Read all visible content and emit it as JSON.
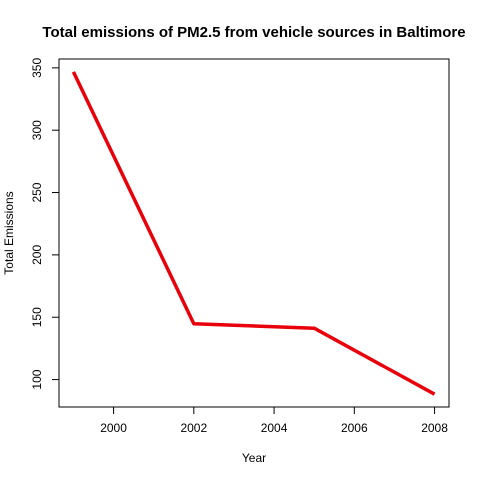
{
  "chart_data": {
    "type": "line",
    "title": "Total emissions of PM2.5 from vehicle sources in Baltimore",
    "xlabel": "Year",
    "ylabel": "Total Emissions",
    "x": [
      1999,
      2002,
      2005,
      2008
    ],
    "series": [
      {
        "values": [
          346.8,
          144.8,
          141.2,
          88.3
        ],
        "color": "#e8000b"
      }
    ],
    "xticks": [
      2000,
      2002,
      2004,
      2006,
      2008
    ],
    "yticks": [
      100,
      150,
      200,
      250,
      300,
      350
    ],
    "xlim": [
      1998.64,
      2008.36
    ],
    "ylim": [
      78.0,
      357.1
    ],
    "grid": false,
    "legend": "none"
  }
}
